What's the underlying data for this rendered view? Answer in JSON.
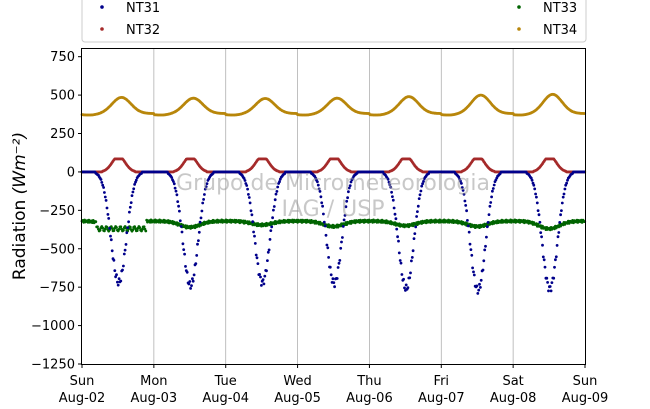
{
  "chart_data": {
    "type": "scatter",
    "title": "",
    "xlabel": "",
    "ylabel": "Radiation",
    "ylabel_unit": "(Wm⁻²)",
    "ylim": [
      -1250,
      800
    ],
    "xlim": [
      "2020-08-02",
      "2020-08-09"
    ],
    "y_ticks": [
      -1250,
      -1000,
      -750,
      -500,
      -250,
      0,
      250,
      500,
      750
    ],
    "x_ticks": [
      {
        "date": "2020-08-02",
        "day": "Sun",
        "label": "Aug-02"
      },
      {
        "date": "2020-08-03",
        "day": "Mon",
        "label": "Aug-03"
      },
      {
        "date": "2020-08-04",
        "day": "Tue",
        "label": "Aug-04"
      },
      {
        "date": "2020-08-05",
        "day": "Wed",
        "label": "Aug-05"
      },
      {
        "date": "2020-08-06",
        "day": "Thu",
        "label": "Aug-06"
      },
      {
        "date": "2020-08-07",
        "day": "Fri",
        "label": "Aug-07"
      },
      {
        "date": "2020-08-08",
        "day": "Sat",
        "label": "Aug-08"
      },
      {
        "date": "2020-08-09",
        "day": "Sun",
        "label": "Aug-09"
      }
    ],
    "grid": "vertical",
    "legend_placement": "top",
    "watermark": [
      "Grupo de Micrometeorologia",
      "IAG / USP"
    ],
    "series": [
      {
        "name": "NT31",
        "color": "#00008b",
        "baseline": 0,
        "daily_minima": [
          {
            "date": "2020-08-02",
            "min": -720
          },
          {
            "date": "2020-08-03",
            "min": -740
          },
          {
            "date": "2020-08-04",
            "min": -720
          },
          {
            "date": "2020-08-05",
            "min": -725
          },
          {
            "date": "2020-08-06",
            "min": -760
          },
          {
            "date": "2020-08-07",
            "min": -770
          },
          {
            "date": "2020-08-08",
            "min": -760
          }
        ]
      },
      {
        "name": "NT32",
        "color": "#a52a2a",
        "baseline": 0,
        "daily_maxima": [
          {
            "date": "2020-08-02",
            "max": 85
          },
          {
            "date": "2020-08-03",
            "max": 85
          },
          {
            "date": "2020-08-04",
            "max": 85
          },
          {
            "date": "2020-08-05",
            "max": 85
          },
          {
            "date": "2020-08-06",
            "max": 85
          },
          {
            "date": "2020-08-07",
            "max": 85
          },
          {
            "date": "2020-08-08",
            "max": 85
          }
        ]
      },
      {
        "name": "NT33",
        "color": "#006400",
        "baseline": -320,
        "daily_minima": [
          {
            "date": "2020-08-02",
            "min": -390
          },
          {
            "date": "2020-08-03",
            "min": -360
          },
          {
            "date": "2020-08-04",
            "min": -345
          },
          {
            "date": "2020-08-05",
            "min": -355
          },
          {
            "date": "2020-08-06",
            "min": -350
          },
          {
            "date": "2020-08-07",
            "min": -355
          },
          {
            "date": "2020-08-08",
            "min": -370
          }
        ]
      },
      {
        "name": "NT34",
        "color": "#b8860b",
        "baseline": 380,
        "daily_maxima": [
          {
            "date": "2020-08-02",
            "max": 485
          },
          {
            "date": "2020-08-03",
            "max": 480
          },
          {
            "date": "2020-08-04",
            "max": 478
          },
          {
            "date": "2020-08-05",
            "max": 480
          },
          {
            "date": "2020-08-06",
            "max": 490
          },
          {
            "date": "2020-08-07",
            "max": 500
          },
          {
            "date": "2020-08-08",
            "max": 505
          }
        ]
      }
    ]
  }
}
